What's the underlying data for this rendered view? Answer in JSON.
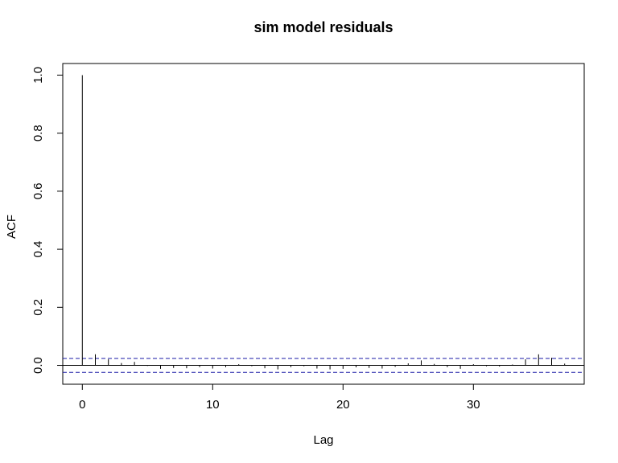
{
  "chart_data": {
    "type": "bar",
    "title": "sim model residuals",
    "xlabel": "Lag",
    "ylabel": "ACF",
    "xlim": [
      -1.5,
      38.5
    ],
    "ylim": [
      -0.065,
      1.04
    ],
    "x_ticks": [
      0,
      10,
      20,
      30
    ],
    "y_ticks": [
      0.0,
      0.2,
      0.4,
      0.6,
      0.8,
      1.0
    ],
    "y_tick_labels": [
      "0.0",
      "0.2",
      "0.4",
      "0.6",
      "0.8",
      "1.0"
    ],
    "confidence_band": [
      -0.024,
      0.024
    ],
    "grid": false,
    "lags": [
      0,
      1,
      2,
      3,
      4,
      5,
      6,
      7,
      8,
      9,
      10,
      11,
      12,
      13,
      14,
      15,
      16,
      17,
      18,
      19,
      20,
      21,
      22,
      23,
      24,
      25,
      26,
      27,
      28,
      29,
      30,
      31,
      32,
      33,
      34,
      35,
      36,
      37
    ],
    "values": [
      1.0,
      0.038,
      0.021,
      0.008,
      0.012,
      -0.002,
      -0.012,
      -0.009,
      -0.01,
      -0.006,
      -0.011,
      -0.006,
      0.004,
      -0.003,
      -0.01,
      -0.014,
      -0.006,
      -0.003,
      -0.011,
      -0.014,
      -0.012,
      -0.007,
      -0.009,
      -0.011,
      -0.005,
      0.007,
      0.017,
      0.005,
      -0.006,
      -0.012,
      0.004,
      -0.003,
      -0.004,
      0.003,
      0.021,
      0.038,
      0.026,
      0.006
    ]
  }
}
